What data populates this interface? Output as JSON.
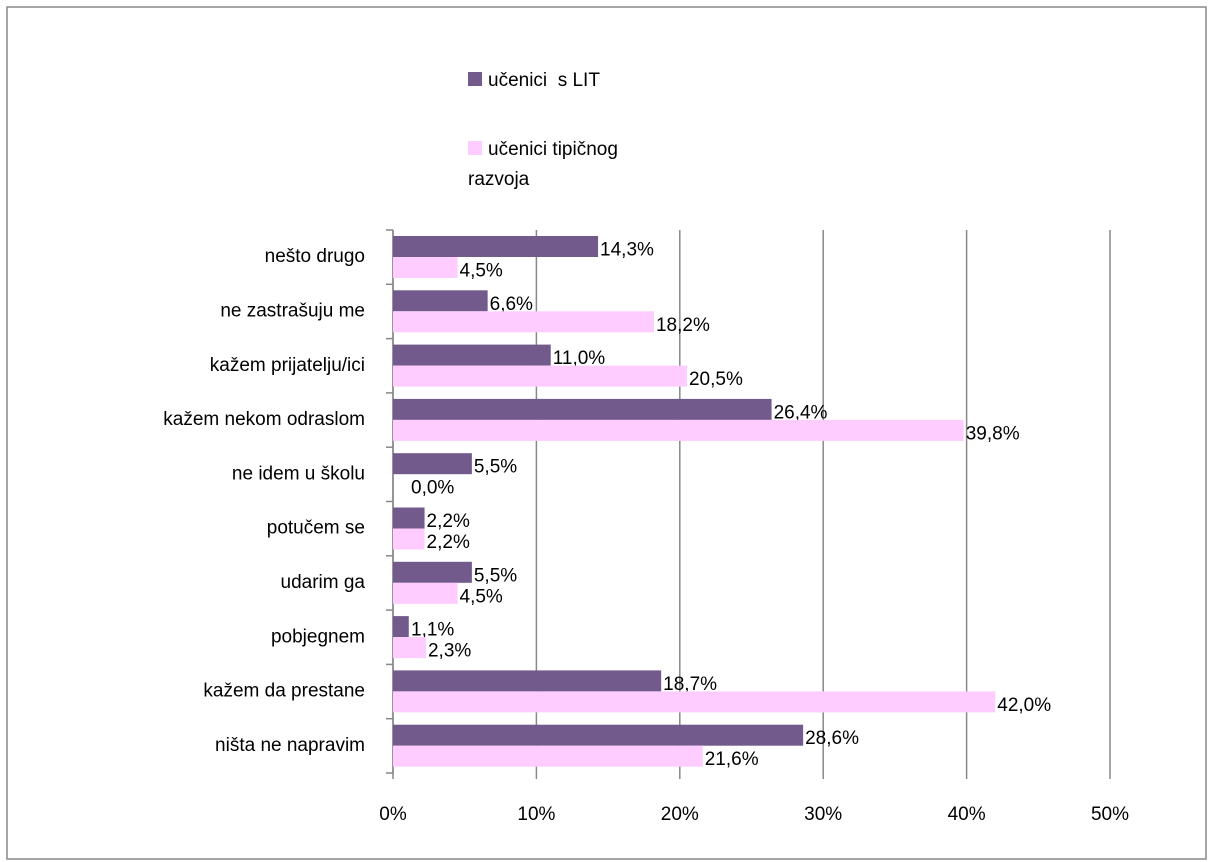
{
  "chart_data": {
    "type": "bar",
    "orientation": "horizontal",
    "categories": [
      "nešto drugo",
      "ne zastrašuju me",
      "kažem prijatelju/ici",
      "kažem nekom odraslom",
      "ne idem u školu",
      "potučem se",
      "udarim ga",
      "pobjegnem",
      "kažem da prestane",
      "ništa ne napravim"
    ],
    "series": [
      {
        "name": "učenici  s LIT",
        "color": "#725a8c",
        "values": [
          14.3,
          6.6,
          11.0,
          26.4,
          5.5,
          2.2,
          5.5,
          1.1,
          18.7,
          28.6
        ],
        "value_labels": [
          "14,3%",
          "6,6%",
          "11,0%",
          "26,4%",
          "5,5%",
          "2,2%",
          "5,5%",
          "1,1%",
          "18,7%",
          "28,6%"
        ]
      },
      {
        "name": "učenici tipičnog razvoja",
        "color": "#ffccff",
        "values": [
          4.5,
          18.2,
          20.5,
          39.8,
          0.0,
          2.2,
          4.5,
          2.3,
          42.0,
          21.6
        ],
        "value_labels": [
          "4,5%",
          "18,2%",
          "20,5%",
          "39,8%",
          "0,0%",
          "2,2%",
          "4,5%",
          "2,3%",
          "42,0%",
          "21,6%"
        ]
      }
    ],
    "xlim": [
      0,
      50
    ],
    "xticks": [
      {
        "value": 0,
        "label": "0%"
      },
      {
        "value": 10,
        "label": "10%"
      },
      {
        "value": 20,
        "label": "20%"
      },
      {
        "value": 30,
        "label": "30%"
      },
      {
        "value": 40,
        "label": "40%"
      },
      {
        "value": 50,
        "label": "50%"
      }
    ],
    "grid": true,
    "legend": "top"
  }
}
